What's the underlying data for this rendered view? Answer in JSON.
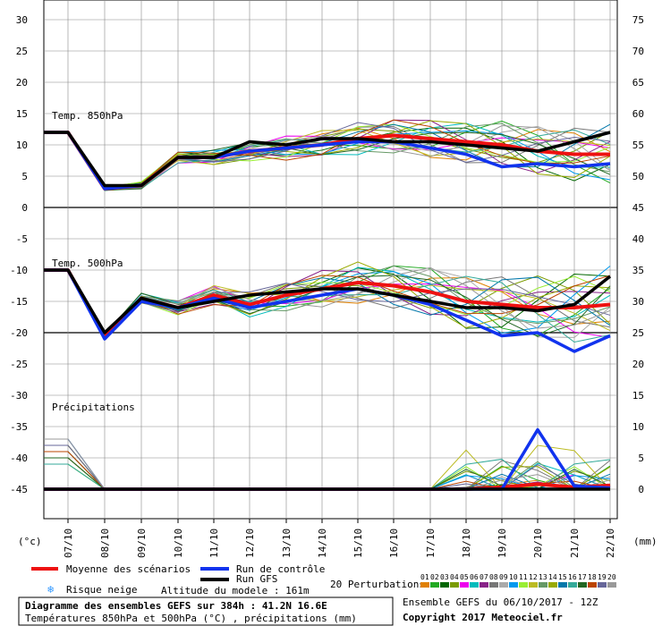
{
  "chart_data": {
    "type": "line",
    "x": [
      "07/10",
      "08/10",
      "09/10",
      "10/10",
      "11/10",
      "12/10",
      "13/10",
      "14/10",
      "15/10",
      "16/10",
      "17/10",
      "18/10",
      "19/10",
      "20/10",
      "21/10",
      "22/10"
    ],
    "left_ticks": [
      "30",
      "25",
      "20",
      "15",
      "10",
      "5",
      "0",
      "-5",
      "-10",
      "-15",
      "-20",
      "-25",
      "-30",
      "-35",
      "-40",
      "-45"
    ],
    "right_ticks": [
      "75",
      "70",
      "65",
      "60",
      "55",
      "50",
      "45",
      "40",
      "35",
      "30",
      "25",
      "20",
      "15",
      "10",
      "5",
      "0"
    ],
    "left_unit": "(°c)",
    "right_unit": "(mm)",
    "panel_labels": {
      "t850": "Temp. 850hPa",
      "t500": "Temp. 500hPa",
      "precip": "Précipitations"
    },
    "series": [
      {
        "name": "Moyenne des scénarios",
        "color": "#ee1111",
        "role": "mean",
        "t850": [
          12,
          3,
          3.5,
          8,
          8,
          9,
          9.5,
          10,
          11,
          11.5,
          11,
          10.5,
          10,
          9,
          8.5,
          8.5
        ],
        "t500": [
          -10,
          -20.5,
          -14.5,
          -16,
          -14,
          -15.5,
          -14,
          -13,
          -12,
          -12.5,
          -13.5,
          -15,
          -15.5,
          -16,
          -16,
          -15.5
        ],
        "precip": [
          0,
          0,
          0,
          0,
          0,
          0,
          0,
          0,
          0,
          0,
          0,
          0,
          0.3,
          0.8,
          0.3,
          0.6
        ]
      },
      {
        "name": "Run de contrôle",
        "color": "#1133ee",
        "role": "control",
        "t850": [
          12,
          3,
          3.5,
          8,
          8,
          9,
          9.5,
          10,
          10.5,
          10.5,
          9.5,
          8.5,
          6.5,
          7,
          6.5,
          7
        ],
        "t500": [
          -10,
          -21,
          -15,
          -16,
          -14.5,
          -16,
          -15,
          -14,
          -13,
          -14,
          -15.5,
          -18,
          -20.5,
          -20,
          -23,
          -20.5
        ],
        "precip": [
          0,
          0,
          0,
          0,
          0,
          0,
          0,
          0,
          0,
          0,
          0,
          0,
          0,
          9.5,
          0.5,
          0.2
        ]
      },
      {
        "name": "Run GFS",
        "color": "#000000",
        "role": "gfs",
        "t850": [
          12,
          3.5,
          3.5,
          8,
          8,
          10.5,
          10,
          11,
          11,
          10.5,
          10.5,
          10,
          9.5,
          9,
          10.5,
          12
        ],
        "t500": [
          -10,
          -20,
          -14.5,
          -16,
          -15,
          -14,
          -13.5,
          -13,
          -13,
          -14,
          -15,
          -16,
          -16,
          -16.5,
          -15.5,
          -11
        ],
        "precip": [
          0,
          0,
          0,
          0,
          0,
          0,
          0,
          0,
          0,
          0,
          0,
          0,
          0,
          0,
          0,
          0
        ]
      }
    ],
    "legend_labels": {
      "mean": "Moyenne des scénarios",
      "control": "Run de contrôle",
      "gfs": "Run GFS",
      "snow": "Risque neige",
      "altitude": "Altitude du modele : 161m",
      "perturbations": "20 Perturbations"
    },
    "perturbation_numbers": [
      "01",
      "02",
      "03",
      "04",
      "05",
      "06",
      "07",
      "08",
      "09",
      "10",
      "11",
      "12",
      "13",
      "14",
      "15",
      "16",
      "17",
      "18",
      "19",
      "20"
    ],
    "perturbation_colors": [
      "#e08000",
      "#22aa22",
      "#006600",
      "#7a9a00",
      "#ee00ee",
      "#00bbbb",
      "#882288",
      "#777777",
      "#aaaaaa",
      "#0099ee",
      "#99ee33",
      "#bbbb22",
      "#669966",
      "#99aa00",
      "#0077aa",
      "#33aa99",
      "#226622",
      "#bb4400",
      "#666699",
      "#999999"
    ],
    "footer": {
      "title": "Diagramme des ensembles GEFS sur 384h : 41.2N 16.6E",
      "subtitle": "Températures 850hPa et 500hPa (°C) , précipitations (mm)",
      "run_info": "Ensemble GEFS du 06/10/2017 - 12Z",
      "copyright": "Copyright 2017 Meteociel.fr"
    }
  }
}
